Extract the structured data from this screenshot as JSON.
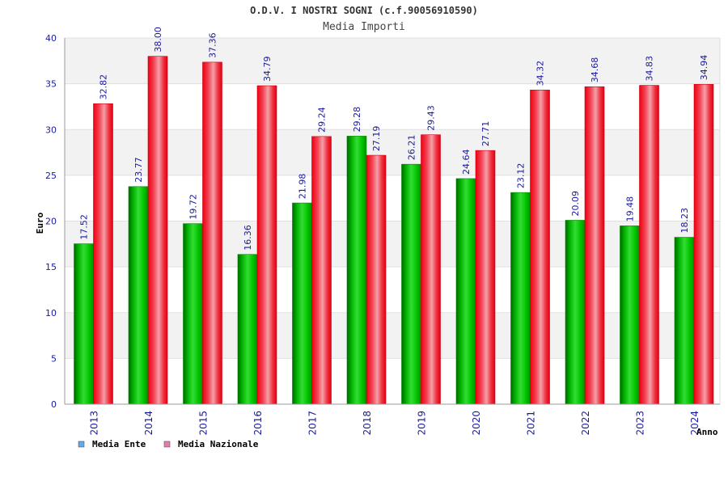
{
  "chart_data": {
    "type": "bar",
    "title": "O.D.V. I NOSTRI SOGNI (c.f.90056910590)",
    "subtitle": "Media Importi",
    "xlabel": "Anno",
    "ylabel": "Euro",
    "ylim": [
      0,
      40
    ],
    "yticks": [
      0,
      5,
      10,
      15,
      20,
      25,
      30,
      35,
      40
    ],
    "grid": true,
    "legend_position": "bottom-left",
    "categories": [
      "2013",
      "2014",
      "2015",
      "2016",
      "2017",
      "2018",
      "2019",
      "2020",
      "2021",
      "2022",
      "2023",
      "2024"
    ],
    "series": [
      {
        "name": "Media Ente",
        "legend_color": "#6aa6e8",
        "bar_color": "#00c000",
        "values": [
          17.52,
          23.77,
          19.72,
          16.36,
          21.98,
          29.28,
          26.21,
          24.64,
          23.12,
          20.09,
          19.48,
          18.23
        ],
        "labels": [
          "17.52",
          "23.77",
          "19.72",
          "16.36",
          "21.98",
          "29.28",
          "26.21",
          "24.64",
          "23.12",
          "20.09",
          "19.48",
          "18.23"
        ]
      },
      {
        "name": "Media Nazionale",
        "legend_color": "#e97ab0",
        "bar_color": "#ee1122",
        "values": [
          32.82,
          38.0,
          37.36,
          34.79,
          29.24,
          27.19,
          29.43,
          27.71,
          34.32,
          34.68,
          34.83,
          34.94
        ],
        "labels": [
          "32.82",
          "38.00",
          "37.36",
          "34.79",
          "29.24",
          "27.19",
          "29.43",
          "27.71",
          "34.32",
          "34.68",
          "34.83",
          "34.94"
        ]
      }
    ]
  }
}
